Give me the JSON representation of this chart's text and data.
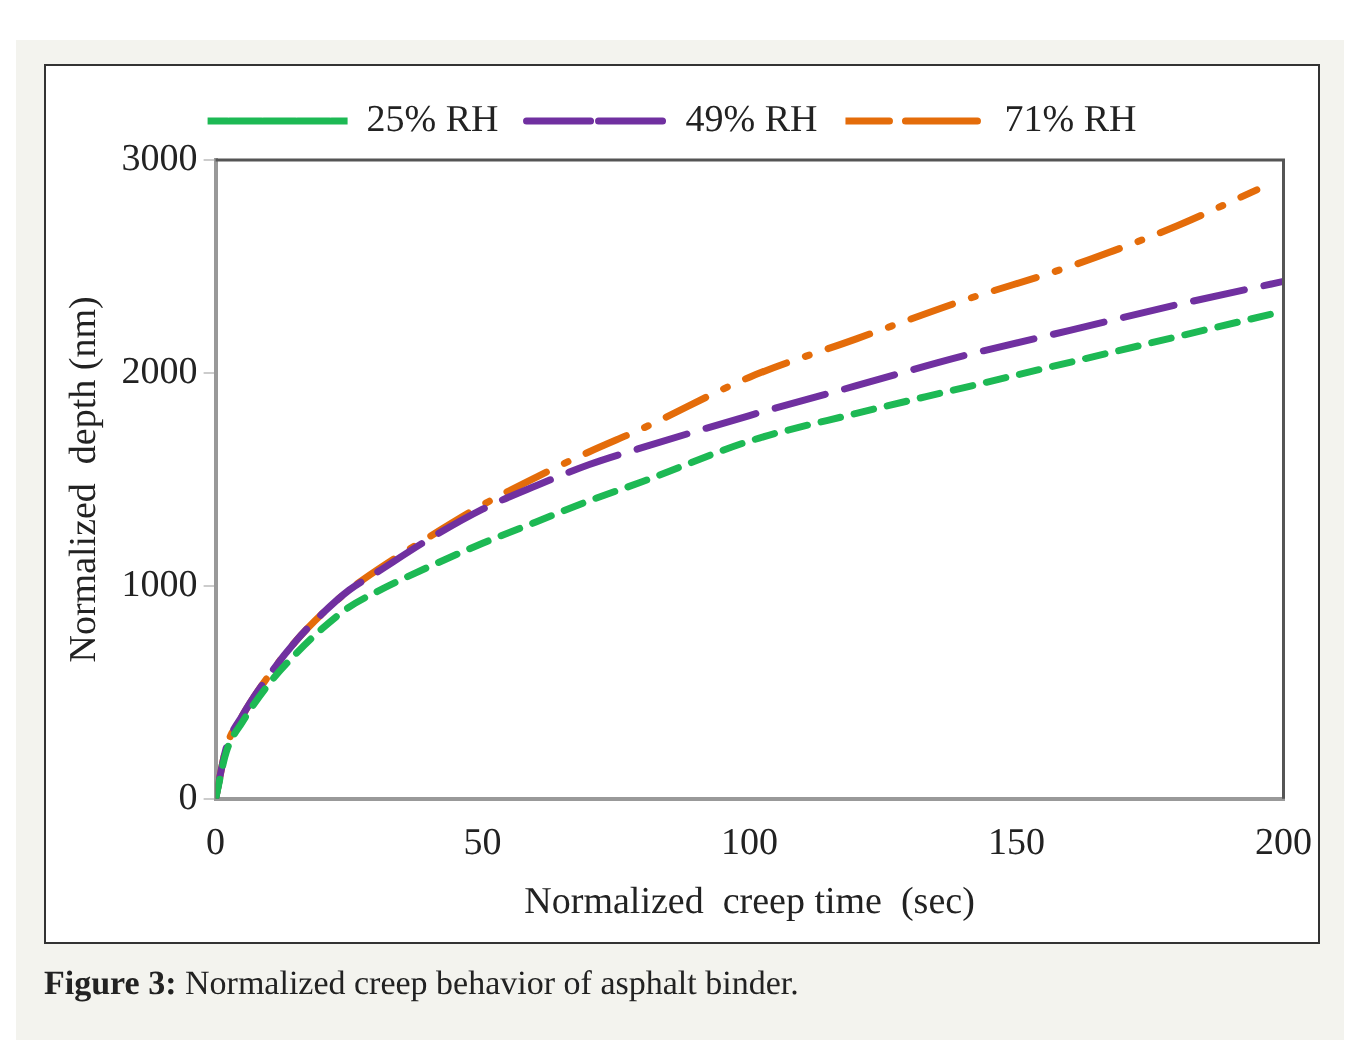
{
  "chart_data": {
    "type": "line",
    "xlabel": "Normalized  creep time  (sec)",
    "ylabel": "Normalized  depth (nm)",
    "xlim": [
      0,
      200
    ],
    "xticks": [
      0,
      50,
      100,
      150,
      200
    ],
    "ylim": [
      0,
      3000
    ],
    "yticks": [
      0,
      1000,
      2000,
      3000
    ],
    "grid": false,
    "legend": "top",
    "marker": "none",
    "annotations": [
      "Figure 3: Normalized creep behavior of asphalt binder."
    ],
    "series": [
      {
        "name": "25% RH",
        "color": "#1db954",
        "line_style": "dashed",
        "x": [
          0,
          2,
          5,
          10,
          15,
          20,
          25,
          30,
          40,
          50,
          60,
          70,
          80,
          100,
          120,
          140,
          160,
          180,
          200
        ],
        "values": [
          0,
          220,
          360,
          540,
          680,
          800,
          900,
          970,
          1090,
          1200,
          1300,
          1400,
          1490,
          1680,
          1810,
          1930,
          2050,
          2170,
          2290
        ]
      },
      {
        "name": "49% RH",
        "color": "#7030a0",
        "line_style": "longdash",
        "x": [
          0,
          2,
          5,
          10,
          15,
          20,
          25,
          30,
          40,
          50,
          60,
          70,
          80,
          100,
          120,
          140,
          160,
          180,
          200
        ],
        "values": [
          0,
          240,
          390,
          580,
          740,
          870,
          980,
          1060,
          1220,
          1360,
          1470,
          1570,
          1650,
          1800,
          1940,
          2080,
          2200,
          2320,
          2430
        ]
      },
      {
        "name": "71% RH",
        "color": "#e46c0a",
        "line_style": "dashdot",
        "x": [
          0,
          2,
          5,
          10,
          15,
          20,
          25,
          30,
          40,
          50,
          60,
          70,
          80,
          100,
          120,
          140,
          160,
          180,
          195
        ],
        "values": [
          0,
          240,
          390,
          580,
          740,
          870,
          980,
          1070,
          1230,
          1380,
          1510,
          1630,
          1740,
          1980,
          2160,
          2340,
          2500,
          2690,
          2860
        ]
      }
    ]
  }
}
